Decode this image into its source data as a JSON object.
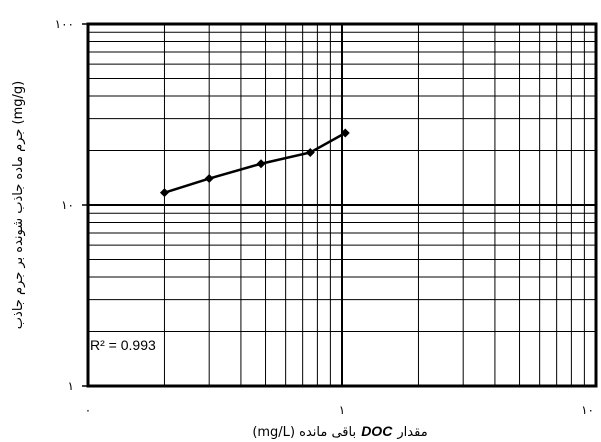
{
  "chart_data": {
    "type": "line",
    "xscale": "log",
    "yscale": "log",
    "xlim": [
      0.1,
      10
    ],
    "ylim": [
      1,
      100
    ],
    "x_tick_labels": [
      "۰",
      "۱",
      "۱۰"
    ],
    "y_tick_labels": [
      "۱",
      "۱۰",
      "۱۰۰"
    ],
    "xlabel_prefix": "مقدار",
    "xlabel_emph": "DOC",
    "xlabel_suffix": "باقی مانده (mg/L)",
    "ylabel": "جرم ماده جاذب شونده بر جرم جاذب (mg/g)",
    "annotation": "R² = 0.993",
    "grid": true,
    "legend": "none",
    "series": [
      {
        "x": [
          0.2,
          0.3,
          0.48,
          0.75,
          1.03
        ],
        "y": [
          11.7,
          14.0,
          16.9,
          19.5,
          25.0
        ]
      }
    ],
    "colors": {
      "line": "#000000",
      "marker": "#000000",
      "grid": "#000000"
    }
  }
}
